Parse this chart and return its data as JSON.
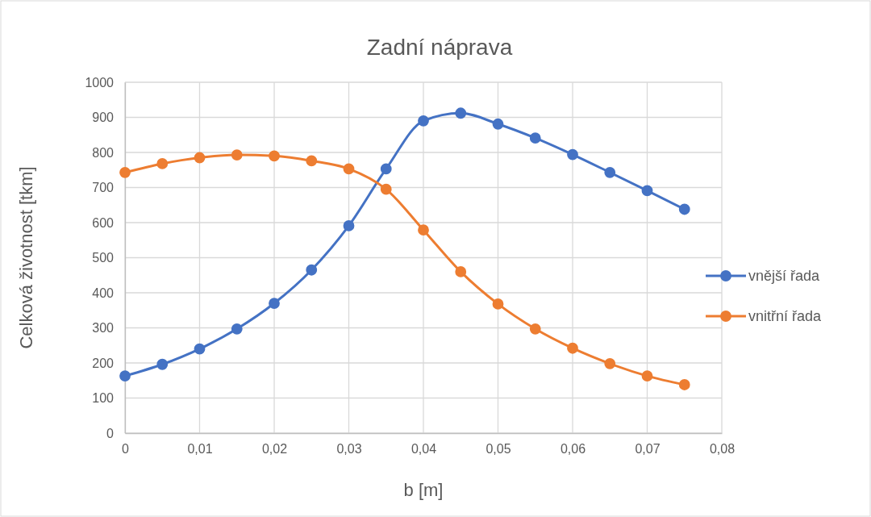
{
  "chart_data": {
    "type": "line",
    "title": "Zadní náprava",
    "xlabel": "b [m]",
    "ylabel": "Celková životnost [tkm]",
    "x": [
      0,
      0.005,
      0.01,
      0.015,
      0.02,
      0.025,
      0.03,
      0.035,
      0.04,
      0.045,
      0.05,
      0.055,
      0.06,
      0.065,
      0.07,
      0.075
    ],
    "series": [
      {
        "name": "vnější řada",
        "color": "#4472c4",
        "values": [
          163,
          196,
          240,
          297,
          370,
          465,
          591,
          753,
          890,
          912,
          881,
          841,
          794,
          743,
          691,
          638
        ]
      },
      {
        "name": "vnitřní řada",
        "color": "#ed7d31",
        "values": [
          743,
          768,
          785,
          793,
          790,
          776,
          753,
          695,
          579,
          460,
          368,
          297,
          242,
          198,
          163,
          138
        ]
      }
    ],
    "xlim": [
      0,
      0.08
    ],
    "xticks": [
      {
        "value": 0,
        "label": "0"
      },
      {
        "value": 0.01,
        "label": "0,01"
      },
      {
        "value": 0.02,
        "label": "0,02"
      },
      {
        "value": 0.03,
        "label": "0,03"
      },
      {
        "value": 0.04,
        "label": "0,04"
      },
      {
        "value": 0.05,
        "label": "0,05"
      },
      {
        "value": 0.06,
        "label": "0,06"
      },
      {
        "value": 0.07,
        "label": "0,07"
      },
      {
        "value": 0.08,
        "label": "0,08"
      }
    ],
    "ylim": [
      0,
      1000
    ],
    "yticks": [
      0,
      100,
      200,
      300,
      400,
      500,
      600,
      700,
      800,
      900,
      1000
    ],
    "grid": true,
    "legend": "right",
    "marker": "circle",
    "line_style": "solid"
  }
}
